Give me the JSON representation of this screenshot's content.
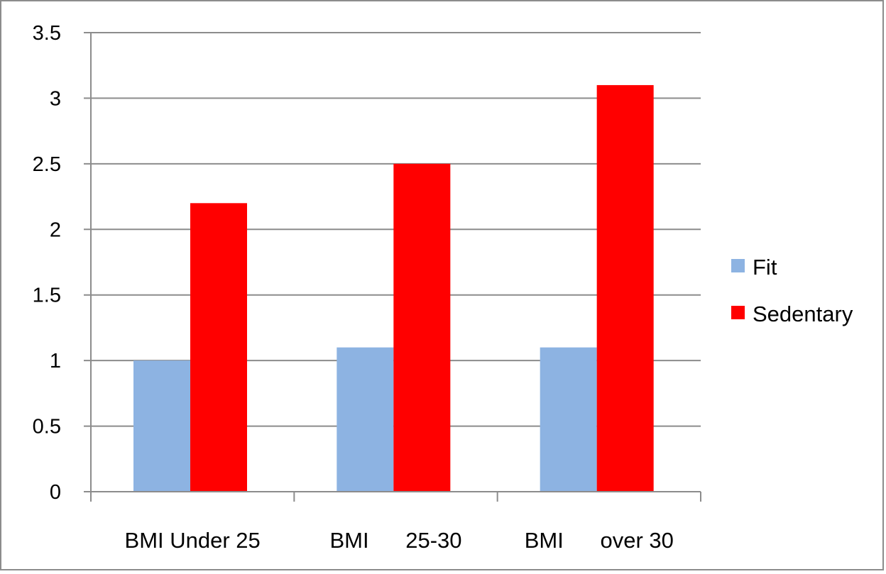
{
  "chart_data": {
    "type": "bar",
    "categories": [
      "BMI Under 25",
      "BMI      25-30",
      "BMI      over 30"
    ],
    "series": [
      {
        "name": "Fit",
        "values": [
          1.0,
          1.1,
          1.1
        ],
        "color": "#8DB3E2"
      },
      {
        "name": "Sedentary",
        "values": [
          2.2,
          2.5,
          3.1
        ],
        "color": "#FF0000"
      }
    ],
    "ylim": [
      0,
      3.5
    ],
    "yticks": [
      "0",
      "0.5",
      "1",
      "1.5",
      "2",
      "2.5",
      "3",
      "3.5"
    ],
    "ytick_values": [
      0,
      0.5,
      1,
      1.5,
      2,
      2.5,
      3,
      3.5
    ],
    "grid": true,
    "legend": "right",
    "title": "",
    "xlabel": "",
    "ylabel": ""
  }
}
